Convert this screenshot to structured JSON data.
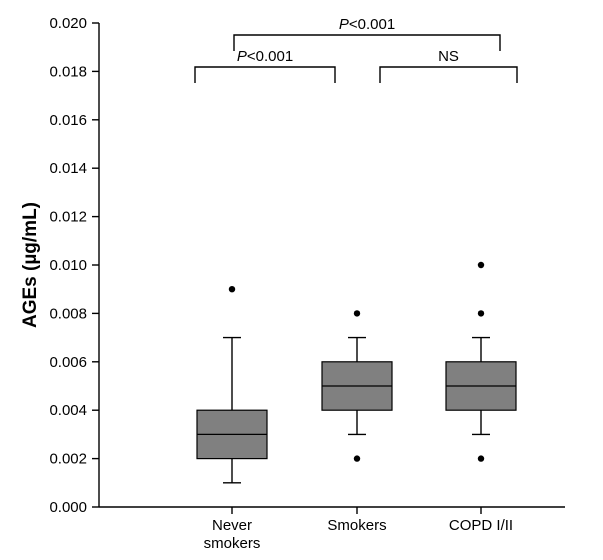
{
  "chart_data": {
    "type": "box",
    "title": "",
    "xlabel": "",
    "ylabel": "AGEs (µg/mL)",
    "ylim": [
      0,
      0.02
    ],
    "yticks": [
      "0.000",
      "0.002",
      "0.004",
      "0.006",
      "0.008",
      "0.010",
      "0.012",
      "0.014",
      "0.016",
      "0.018",
      "0.020"
    ],
    "categories": [
      {
        "lines": [
          "Never",
          "smokers"
        ]
      },
      {
        "lines": [
          "Smokers"
        ]
      },
      {
        "lines": [
          "COPD I/II"
        ]
      }
    ],
    "boxes": [
      {
        "min": 0.001,
        "q1": 0.002,
        "median": 0.003,
        "q3": 0.004,
        "max": 0.007,
        "outliers": [
          0.009
        ]
      },
      {
        "min": 0.003,
        "q1": 0.004,
        "median": 0.005,
        "q3": 0.006,
        "max": 0.007,
        "outliers": [
          0.008,
          0.002
        ]
      },
      {
        "min": 0.003,
        "q1": 0.004,
        "median": 0.005,
        "q3": 0.006,
        "max": 0.007,
        "outliers": [
          0.01,
          0.008,
          0.002
        ]
      }
    ],
    "box_color": "#808080",
    "comparisons": [
      {
        "from": 0,
        "to": 1,
        "italic": "P",
        "text": "<0.001"
      },
      {
        "from": 1,
        "to": 2,
        "italic": "",
        "text": "NS"
      },
      {
        "from": 0,
        "to": 2,
        "italic": "P",
        "text": "<0.001"
      }
    ]
  }
}
